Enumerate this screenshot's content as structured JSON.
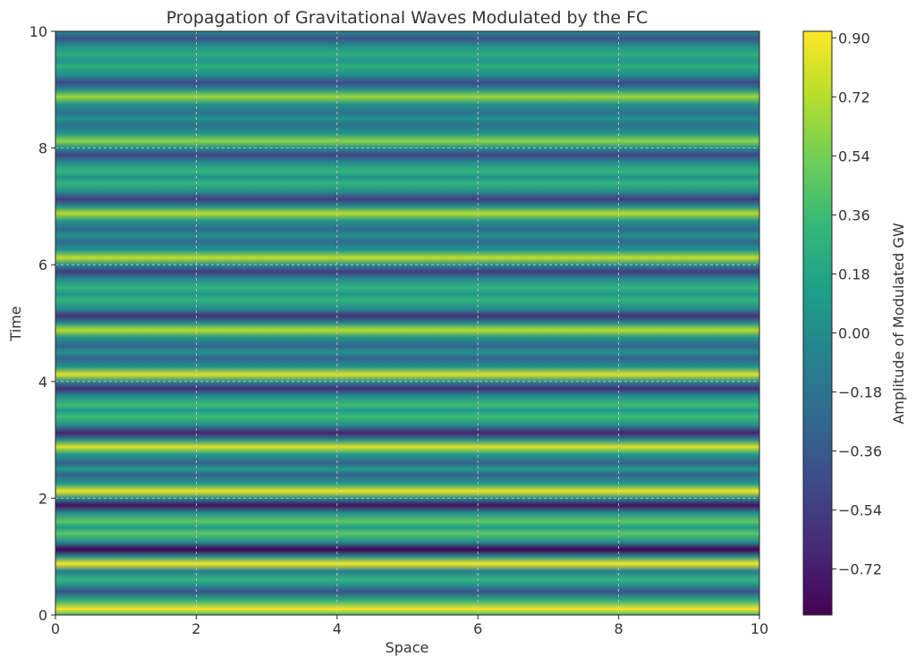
{
  "chart_data": {
    "type": "heatmap",
    "title": "Propagation of Gravitational Waves Modulated by the FC",
    "xlabel": "Space",
    "ylabel": "Time",
    "xlim": [
      0,
      10
    ],
    "ylim": [
      0,
      10
    ],
    "x_ticks": [
      "0",
      "2",
      "4",
      "6",
      "8",
      "10"
    ],
    "y_ticks": [
      "0",
      "2",
      "4",
      "6",
      "8",
      "10"
    ],
    "grid": true,
    "colorbar": {
      "label": "Amplitude of Modulated GW",
      "min": -0.86,
      "max": 0.92,
      "ticks": [
        "0.90",
        "0.72",
        "0.54",
        "0.36",
        "0.18",
        "0.00",
        "−0.18",
        "−0.36",
        "−0.54",
        "−0.72"
      ],
      "tick_values": [
        0.9,
        0.72,
        0.54,
        0.36,
        0.18,
        0.0,
        -0.18,
        -0.36,
        -0.54,
        -0.72
      ],
      "colormap": "viridis",
      "colors": [
        "#440154",
        "#482878",
        "#3e4989",
        "#31688e",
        "#26828e",
        "#1f9e89",
        "#35b779",
        "#6ece58",
        "#b5de2b",
        "#fde725"
      ]
    },
    "note_variation": "Amplitude is constant along Space and varies with Time",
    "time_profile": [
      {
        "t": 0.0,
        "v": 0.35
      },
      {
        "t": 0.1,
        "v": 0.9
      },
      {
        "t": 0.25,
        "v": 0.25
      },
      {
        "t": 0.4,
        "v": -0.4
      },
      {
        "t": 0.5,
        "v": 0.0
      },
      {
        "t": 0.6,
        "v": 0.3
      },
      {
        "t": 0.75,
        "v": -0.1
      },
      {
        "t": 0.88,
        "v": 0.9
      },
      {
        "t": 1.0,
        "v": 0.0
      },
      {
        "t": 1.12,
        "v": -0.85
      },
      {
        "t": 1.25,
        "v": 0.0
      },
      {
        "t": 1.4,
        "v": 0.45
      },
      {
        "t": 1.5,
        "v": 0.1
      },
      {
        "t": 1.6,
        "v": 0.45
      },
      {
        "t": 1.75,
        "v": 0.0
      },
      {
        "t": 1.88,
        "v": -0.78
      },
      {
        "t": 2.0,
        "v": 0.0
      },
      {
        "t": 2.12,
        "v": 0.88
      },
      {
        "t": 2.25,
        "v": 0.1
      },
      {
        "t": 2.4,
        "v": -0.3
      },
      {
        "t": 2.5,
        "v": 0.1
      },
      {
        "t": 2.6,
        "v": -0.3
      },
      {
        "t": 2.75,
        "v": 0.1
      },
      {
        "t": 2.88,
        "v": 0.82
      },
      {
        "t": 3.0,
        "v": 0.0
      },
      {
        "t": 3.12,
        "v": -0.7
      },
      {
        "t": 3.25,
        "v": 0.0
      },
      {
        "t": 3.4,
        "v": 0.35
      },
      {
        "t": 3.5,
        "v": 0.1
      },
      {
        "t": 3.6,
        "v": 0.35
      },
      {
        "t": 3.75,
        "v": 0.0
      },
      {
        "t": 3.88,
        "v": -0.62
      },
      {
        "t": 4.0,
        "v": 0.0
      },
      {
        "t": 4.12,
        "v": 0.84
      },
      {
        "t": 4.25,
        "v": 0.05
      },
      {
        "t": 4.4,
        "v": -0.3
      },
      {
        "t": 4.5,
        "v": 0.05
      },
      {
        "t": 4.6,
        "v": -0.28
      },
      {
        "t": 4.75,
        "v": 0.05
      },
      {
        "t": 4.88,
        "v": 0.72
      },
      {
        "t": 5.0,
        "v": 0.0
      },
      {
        "t": 5.12,
        "v": -0.6
      },
      {
        "t": 5.25,
        "v": 0.0
      },
      {
        "t": 5.4,
        "v": 0.3
      },
      {
        "t": 5.5,
        "v": 0.05
      },
      {
        "t": 5.6,
        "v": 0.3
      },
      {
        "t": 5.75,
        "v": 0.0
      },
      {
        "t": 5.88,
        "v": -0.55
      },
      {
        "t": 6.0,
        "v": 0.0
      },
      {
        "t": 6.12,
        "v": 0.75
      },
      {
        "t": 6.25,
        "v": 0.05
      },
      {
        "t": 6.4,
        "v": -0.25
      },
      {
        "t": 6.5,
        "v": 0.05
      },
      {
        "t": 6.6,
        "v": -0.25
      },
      {
        "t": 6.75,
        "v": 0.05
      },
      {
        "t": 6.88,
        "v": 0.72
      },
      {
        "t": 7.0,
        "v": 0.0
      },
      {
        "t": 7.12,
        "v": -0.55
      },
      {
        "t": 7.25,
        "v": 0.0
      },
      {
        "t": 7.4,
        "v": 0.3
      },
      {
        "t": 7.5,
        "v": 0.05
      },
      {
        "t": 7.6,
        "v": 0.3
      },
      {
        "t": 7.75,
        "v": 0.0
      },
      {
        "t": 7.88,
        "v": -0.5
      },
      {
        "t": 8.0,
        "v": 0.0
      },
      {
        "t": 8.12,
        "v": 0.6
      },
      {
        "t": 8.25,
        "v": 0.05
      },
      {
        "t": 8.4,
        "v": -0.2
      },
      {
        "t": 8.5,
        "v": 0.05
      },
      {
        "t": 8.6,
        "v": -0.2
      },
      {
        "t": 8.75,
        "v": 0.05
      },
      {
        "t": 8.88,
        "v": 0.65
      },
      {
        "t": 9.0,
        "v": 0.0
      },
      {
        "t": 9.12,
        "v": -0.45
      },
      {
        "t": 9.25,
        "v": 0.0
      },
      {
        "t": 9.4,
        "v": 0.25
      },
      {
        "t": 9.5,
        "v": 0.05
      },
      {
        "t": 9.6,
        "v": 0.25
      },
      {
        "t": 9.75,
        "v": 0.0
      },
      {
        "t": 9.88,
        "v": -0.4
      },
      {
        "t": 10.0,
        "v": 0.0
      }
    ]
  }
}
